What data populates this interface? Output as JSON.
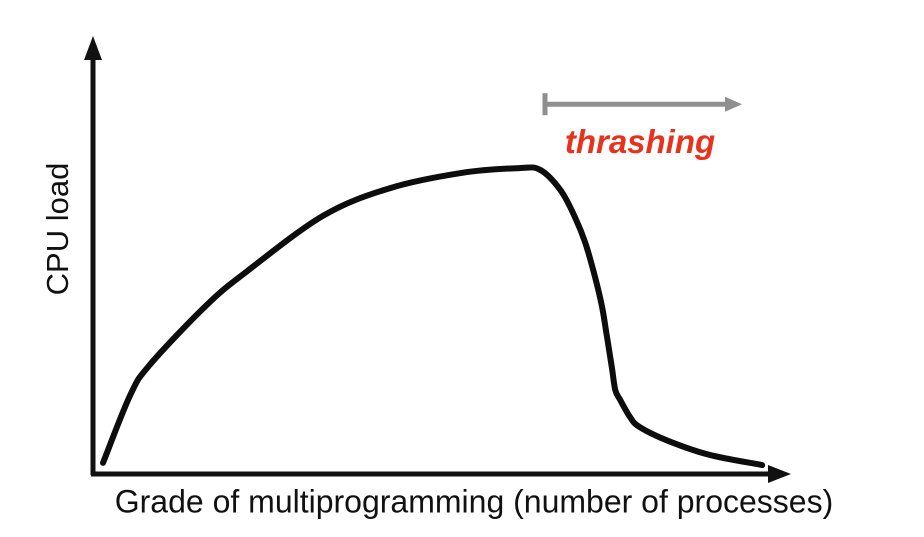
{
  "chart_data": {
    "type": "line",
    "title": "",
    "xlabel": "Grade of multiprogramming (number of processes)",
    "ylabel": "CPU load",
    "axes": {
      "x": {
        "range": [
          0,
          1
        ],
        "ticks": [],
        "style": "arrow",
        "numeric_labels_shown": false
      },
      "y": {
        "range": [
          0,
          1
        ],
        "ticks": [],
        "style": "arrow",
        "numeric_labels_shown": false
      }
    },
    "grid": false,
    "legend": false,
    "axis_color": "#111111",
    "series": [
      {
        "name": "CPU load",
        "color": "#0d0d0d",
        "points": [
          [
            0.013,
            0.026
          ],
          [
            0.052,
            0.185
          ],
          [
            0.08,
            0.256
          ],
          [
            0.162,
            0.397
          ],
          [
            0.22,
            0.476
          ],
          [
            0.329,
            0.606
          ],
          [
            0.425,
            0.671
          ],
          [
            0.529,
            0.707
          ],
          [
            0.611,
            0.718
          ],
          [
            0.641,
            0.714
          ],
          [
            0.67,
            0.667
          ],
          [
            0.691,
            0.603
          ],
          [
            0.706,
            0.542
          ],
          [
            0.72,
            0.462
          ],
          [
            0.73,
            0.392
          ],
          [
            0.737,
            0.322
          ],
          [
            0.744,
            0.251
          ],
          [
            0.749,
            0.197
          ],
          [
            0.756,
            0.174
          ],
          [
            0.77,
            0.134
          ],
          [
            0.784,
            0.11
          ],
          [
            0.826,
            0.077
          ],
          [
            0.884,
            0.045
          ],
          [
            0.96,
            0.021
          ]
        ]
      }
    ],
    "annotations": [
      {
        "label": "thrashing",
        "text_color": "#e8321c",
        "arrow": {
          "from_x": 0.648,
          "to_x": 0.931,
          "y": 0.868,
          "color": "#8f8f8f",
          "start_cap": "tick",
          "end_cap": "arrowhead"
        }
      }
    ]
  }
}
